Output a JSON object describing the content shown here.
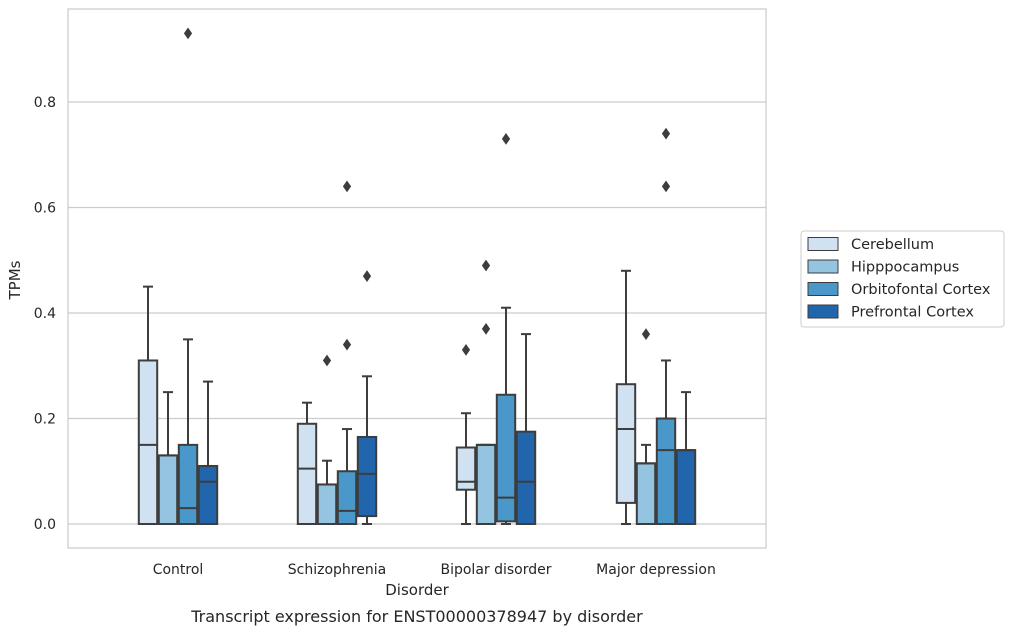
{
  "chart_data": {
    "type": "boxplot",
    "caption": "Transcript expression for ENST00000378947 by disorder",
    "xlabel": "Disorder",
    "ylabel": "TPMs",
    "ylim": [
      -0.045,
      0.98
    ],
    "yticks": [
      0.0,
      0.2,
      0.4,
      0.6,
      0.8
    ],
    "ytick_labels": [
      "0.0",
      "0.2",
      "0.4",
      "0.6",
      "0.8"
    ],
    "grid": "horizontal",
    "legend_position": "right",
    "categories": [
      "Control",
      "Schizophrenia",
      "Bipolar disorder",
      "Major depression"
    ],
    "series": [
      {
        "name": "Cerebellum",
        "color": "#d0e1f2",
        "boxes": [
          {
            "whislo": 0.0,
            "q1": 0.0,
            "med": 0.15,
            "q3": 0.31,
            "whishi": 0.45,
            "fliers": []
          },
          {
            "whislo": 0.0,
            "q1": 0.0,
            "med": 0.105,
            "q3": 0.19,
            "whishi": 0.23,
            "fliers": []
          },
          {
            "whislo": 0.0,
            "q1": 0.065,
            "med": 0.08,
            "q3": 0.145,
            "whishi": 0.21,
            "fliers": [
              0.33
            ]
          },
          {
            "whislo": 0.0,
            "q1": 0.04,
            "med": 0.18,
            "q3": 0.265,
            "whishi": 0.48,
            "fliers": []
          }
        ]
      },
      {
        "name": "Hipppocampus",
        "color": "#94c4df",
        "boxes": [
          {
            "whislo": 0.0,
            "q1": 0.0,
            "med": 0.13,
            "q3": 0.13,
            "whishi": 0.25,
            "fliers": []
          },
          {
            "whislo": 0.0,
            "q1": 0.0,
            "med": 0.075,
            "q3": 0.075,
            "whishi": 0.12,
            "fliers": [
              0.31
            ]
          },
          {
            "whislo": 0.0,
            "q1": 0.0,
            "med": 0.15,
            "q3": 0.15,
            "whishi": 0.15,
            "fliers": [
              0.37,
              0.49
            ]
          },
          {
            "whislo": 0.0,
            "q1": 0.0,
            "med": 0.115,
            "q3": 0.115,
            "whishi": 0.15,
            "fliers": [
              0.36
            ]
          }
        ]
      },
      {
        "name": "Orbitofontal Cortex",
        "color": "#4a98c9",
        "boxes": [
          {
            "whislo": 0.0,
            "q1": 0.0,
            "med": 0.03,
            "q3": 0.15,
            "whishi": 0.35,
            "fliers": [
              0.93
            ]
          },
          {
            "whislo": 0.0,
            "q1": 0.0,
            "med": 0.025,
            "q3": 0.1,
            "whishi": 0.18,
            "fliers": [
              0.34,
              0.64
            ]
          },
          {
            "whislo": 0.0,
            "q1": 0.005,
            "med": 0.05,
            "q3": 0.245,
            "whishi": 0.41,
            "fliers": [
              0.73
            ]
          },
          {
            "whislo": 0.0,
            "q1": 0.0,
            "med": 0.14,
            "q3": 0.2,
            "whishi": 0.31,
            "fliers": [
              0.64,
              0.74
            ]
          }
        ]
      },
      {
        "name": "Prefrontal Cortex",
        "color": "#2166ac",
        "boxes": [
          {
            "whislo": 0.0,
            "q1": 0.0,
            "med": 0.08,
            "q3": 0.11,
            "whishi": 0.27,
            "fliers": []
          },
          {
            "whislo": 0.0,
            "q1": 0.015,
            "med": 0.095,
            "q3": 0.165,
            "whishi": 0.28,
            "fliers": [
              0.47
            ]
          },
          {
            "whislo": 0.0,
            "q1": 0.0,
            "med": 0.08,
            "q3": 0.175,
            "whishi": 0.36,
            "fliers": []
          },
          {
            "whislo": 0.0,
            "q1": 0.0,
            "med": 0.14,
            "q3": 0.14,
            "whishi": 0.25,
            "fliers": []
          }
        ]
      }
    ]
  }
}
